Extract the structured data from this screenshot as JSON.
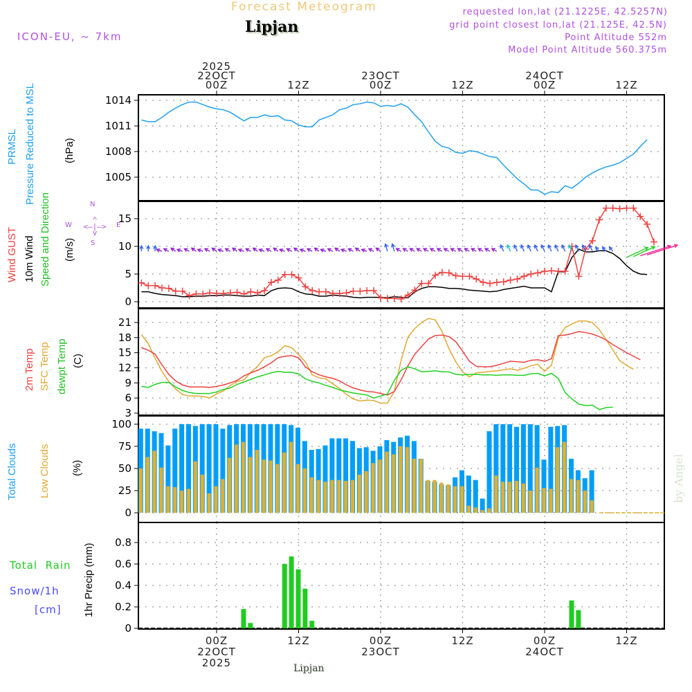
{
  "header": {
    "title": "Forecast Meteogram",
    "location": "Lipjan",
    "model": "ICON-EU, ~ 7km",
    "requested": "requested lon,lat (21.1225E, 42.5257N)",
    "gridpoint": "grid point closest lon,lat (21.125E, 42.5N)",
    "altitude": "Point Altitude 552m",
    "model_altitude": "Model Point Altitude 560.375m",
    "watermark": "by Angel",
    "footer_location": "Lipjan"
  },
  "colors": {
    "title": "#f0c878",
    "meta": "#b050e0",
    "pressure": "#1ea0f0",
    "gust": "#f04040",
    "wind": "#000000",
    "wind_dir_label": "#20c020",
    "t2m": "#f04040",
    "tsfc": "#e0a830",
    "dewpt": "#20d020",
    "total_cloud": "#009ef8",
    "low_cloud": "#e0b030",
    "rain": "#20cc20",
    "snow": "#4848ff"
  },
  "panels": {
    "pressure": {
      "labels": [
        "PRMSL",
        "Pressure Reduced to MSL"
      ],
      "unit": "(hPa)"
    },
    "wind": {
      "labels": [
        "Wind GUST",
        "10m Wind",
        "Speed and Direction"
      ],
      "unit": "(m/s)",
      "compass": {
        "n": "N",
        "s": "S",
        "e": "E",
        "w": "W"
      }
    },
    "temp": {
      "labels": [
        "2m Temp",
        "SFC Temp",
        "dewpt Temp"
      ],
      "unit": "(C)"
    },
    "clouds": {
      "labels": [
        "Total Clouds",
        "Low Clouds"
      ],
      "unit": "(%)"
    },
    "precip": {
      "labels": [
        "Total  Rain",
        "Snow/1h",
        "[cm]"
      ],
      "unit": "1hr Precip (mm)"
    }
  },
  "top_axis": [
    {
      "hour": 0,
      "lines": [
        "2025",
        "22OCT",
        "00Z"
      ]
    },
    {
      "hour": 12,
      "lines": [
        "12Z"
      ]
    },
    {
      "hour": 24,
      "lines": [
        "23OCT",
        "00Z"
      ]
    },
    {
      "hour": 36,
      "lines": [
        "12Z"
      ]
    },
    {
      "hour": 48,
      "lines": [
        "24OCT",
        "00Z"
      ]
    },
    {
      "hour": 60,
      "lines": [
        "12Z"
      ]
    }
  ],
  "bottom_axis": [
    {
      "hour": 0,
      "lines": [
        "00Z",
        "22OCT",
        "2025"
      ]
    },
    {
      "hour": 12,
      "lines": [
        "12Z"
      ]
    },
    {
      "hour": 24,
      "lines": [
        "00Z",
        "23OCT"
      ]
    },
    {
      "hour": 36,
      "lines": [
        "12Z"
      ]
    },
    {
      "hour": 48,
      "lines": [
        "00Z",
        "24OCT"
      ]
    },
    {
      "hour": 60,
      "lines": [
        "12Z"
      ]
    }
  ],
  "chart_data": [
    {
      "type": "line",
      "title": "PRMSL Pressure Reduced to MSL",
      "ylabel": "hPa",
      "ylim": [
        1002.5,
        1014.7
      ],
      "yticks": [
        1005,
        1008,
        1011,
        1014
      ],
      "x_start_hour": -11,
      "x_step_hours": 1,
      "series": [
        {
          "name": "PRMSL",
          "values": [
            1011.7,
            1011.5,
            1011.5,
            1012.0,
            1012.6,
            1013.1,
            1013.5,
            1013.8,
            1013.8,
            1013.5,
            1013.2,
            1013.0,
            1012.9,
            1012.6,
            1012.1,
            1011.6,
            1012.0,
            1012.0,
            1012.3,
            1012.1,
            1012.2,
            1011.7,
            1011.6,
            1011.1,
            1010.9,
            1010.9,
            1011.7,
            1012.0,
            1012.3,
            1012.9,
            1013.1,
            1013.5,
            1013.6,
            1013.8,
            1013.7,
            1013.3,
            1013.4,
            1013.3,
            1013.6,
            1013.2,
            1012.3,
            1011.5,
            1010.3,
            1009.2,
            1008.6,
            1008.4,
            1007.9,
            1007.8,
            1008.1,
            1008.0,
            1007.7,
            1007.4,
            1007.3,
            1006.4,
            1005.6,
            1004.8,
            1004.2,
            1003.5,
            1003.5,
            1003.0,
            1003.3,
            1003.2,
            1004.0,
            1003.7,
            1004.3,
            1005.0,
            1005.5,
            1005.9,
            1006.2,
            1006.4,
            1006.7,
            1007.2,
            1007.7,
            1008.6,
            1009.4
          ]
        }
      ]
    },
    {
      "type": "line",
      "title": "Wind GUST / 10m Wind Speed and Direction",
      "ylabel": "m/s",
      "ylim": [
        -1,
        18
      ],
      "yticks": [
        0,
        5,
        10,
        15
      ],
      "x_start_hour": -11,
      "x_step_hours": 1,
      "series": [
        {
          "name": "Wind GUST",
          "values": [
            3.4,
            2.9,
            2.9,
            2.5,
            2.4,
            1.9,
            1.9,
            1.1,
            1.4,
            1.4,
            1.6,
            1.5,
            1.5,
            1.6,
            1.7,
            1.4,
            1.8,
            1.6,
            2.0,
            3.5,
            3.9,
            4.9,
            4.9,
            4.3,
            2.7,
            2.0,
            1.8,
            1.8,
            1.5,
            1.5,
            1.6,
            1.9,
            1.9,
            2.0,
            2.0,
            0.7,
            0.6,
            0.6,
            0.5,
            1.2,
            2.1,
            3.3,
            3.3,
            4.8,
            5.3,
            5.2,
            4.7,
            4.6,
            4.6,
            4.1,
            3.5,
            3.3,
            3.5,
            3.6,
            3.9,
            4.1,
            4.6,
            5.0,
            5.2,
            5.5,
            5.6,
            5.5,
            5.5,
            10.0,
            4.6,
            9.5,
            11.0,
            14.8,
            16.9,
            16.9,
            16.8,
            16.9,
            16.9,
            15.4,
            14.0,
            10.8
          ]
        },
        {
          "name": "10m Wind",
          "values": [
            1.8,
            1.8,
            1.5,
            1.3,
            1.2,
            1.1,
            0.9,
            0.9,
            1.0,
            1.0,
            1.1,
            1.1,
            1.2,
            1.2,
            1.1,
            1.0,
            1.0,
            1.2,
            1.1,
            2.0,
            2.4,
            2.5,
            2.4,
            1.8,
            1.4,
            1.3,
            1.0,
            1.0,
            1.2,
            1.1,
            1.0,
            0.8,
            0.7,
            0.8,
            0.8,
            0.8,
            0.7,
            0.9,
            0.8,
            0.7,
            1.8,
            2.4,
            2.7,
            2.7,
            2.6,
            2.4,
            2.4,
            2.3,
            2.1,
            2.0,
            1.9,
            1.8,
            1.9,
            2.2,
            2.4,
            2.6,
            2.8,
            2.5,
            2.5,
            2.5,
            1.8,
            5.4,
            5.4,
            8.0,
            9.5,
            9.0,
            9.0,
            9.2,
            9.2,
            8.7,
            7.8,
            6.5,
            5.5,
            5.0,
            4.9
          ]
        }
      ],
      "wind_direction_arrows": "plotted at ~9 m/s row; blue/purple N-NW arrows Oct 21-24, shifting to SW (green/magenta/orange) after 24OCT ~06Z"
    },
    {
      "type": "line",
      "title": "2m Temp / SFC Temp / dewpt Temp",
      "ylabel": "C",
      "ylim": [
        3,
        22.5
      ],
      "yticks": [
        3,
        6,
        9,
        12,
        15,
        18,
        21
      ],
      "x_start_hour": -11,
      "x_step_hours": 1,
      "series": [
        {
          "name": "2m Temp",
          "values": [
            16.0,
            15.5,
            14.7,
            12.6,
            10.7,
            9.4,
            8.6,
            8.2,
            8.2,
            8.2,
            8.1,
            8.3,
            8.6,
            9.0,
            9.5,
            10.4,
            11.0,
            11.5,
            12.2,
            13.0,
            14.0,
            14.3,
            14.4,
            14.0,
            12.2,
            11.2,
            10.6,
            10.2,
            9.9,
            9.4,
            8.6,
            8.0,
            7.6,
            7.3,
            7.2,
            6.9,
            6.6,
            7.3,
            9.6,
            12.4,
            14.7,
            16.2,
            17.7,
            18.4,
            18.5,
            18.2,
            17.2,
            15.3,
            13.3,
            12.3,
            12.2,
            12.2,
            12.5,
            12.9,
            13.3,
            13.2,
            13.1,
            13.5,
            13.6,
            13.3,
            13.8,
            18.4,
            18.5,
            18.8,
            19.2,
            19.0,
            18.7,
            18.2,
            17.5,
            16.6,
            15.8,
            15.0,
            14.3,
            13.6
          ]
        },
        {
          "name": "SFC Temp",
          "values": [
            18.6,
            16.8,
            13.9,
            11.3,
            9.3,
            7.8,
            6.7,
            6.4,
            6.4,
            6.3,
            6.0,
            6.8,
            7.4,
            8.5,
            9.3,
            9.6,
            11.1,
            12.3,
            14.0,
            14.4,
            15.2,
            16.4,
            16.0,
            14.6,
            13.2,
            10.6,
            10.0,
            9.8,
            8.8,
            7.9,
            6.7,
            5.8,
            5.4,
            5.6,
            5.5,
            5.0,
            5.0,
            7.3,
            13.5,
            18.1,
            19.8,
            21.0,
            21.8,
            21.5,
            19.2,
            15.8,
            13.2,
            11.2,
            10.2,
            11.0,
            11.1,
            11.3,
            11.4,
            11.6,
            11.8,
            11.5,
            11.9,
            12.4,
            12.7,
            11.3,
            12.5,
            17.9,
            20.0,
            20.7,
            21.3,
            21.3,
            21.0,
            19.6,
            17.6,
            15.5,
            13.4,
            12.5,
            11.7
          ]
        },
        {
          "name": "dewpt Temp",
          "values": [
            8.3,
            8.1,
            8.7,
            9.1,
            9.1,
            8.2,
            7.5,
            7.1,
            6.9,
            6.9,
            6.9,
            7.2,
            7.7,
            8.0,
            8.7,
            9.2,
            9.7,
            10.2,
            10.6,
            11.0,
            11.3,
            11.1,
            11.1,
            10.8,
            9.8,
            9.3,
            9.0,
            8.5,
            8.1,
            7.6,
            7.3,
            7.0,
            6.8,
            6.6,
            6.0,
            6.4,
            6.8,
            9.5,
            11.5,
            12.2,
            11.8,
            11.2,
            11.3,
            11.4,
            11.2,
            11.2,
            10.7,
            10.6,
            10.7,
            10.7,
            10.6,
            10.6,
            10.5,
            10.6,
            10.6,
            10.5,
            10.5,
            10.8,
            10.9,
            10.4,
            10.9,
            9.9,
            7.1,
            5.8,
            4.8,
            4.5,
            4.6,
            3.7,
            4.1,
            4.2
          ]
        }
      ]
    },
    {
      "type": "bar",
      "title": "Total Clouds / Low Clouds",
      "ylabel": "%",
      "ylim": [
        0,
        100
      ],
      "yticks": [
        0,
        25,
        50,
        75,
        100
      ],
      "x_start_hour": -11,
      "x_step_hours": 1,
      "series": [
        {
          "name": "Total Clouds",
          "values": [
            95,
            95,
            92,
            90,
            76,
            95,
            100,
            100,
            98,
            100,
            100,
            100,
            95,
            99,
            100,
            100,
            100,
            100,
            100,
            100,
            100,
            100,
            99,
            96,
            81,
            71,
            72,
            76,
            84,
            84,
            84,
            81,
            73,
            74,
            70,
            75,
            82,
            80,
            85,
            87,
            81,
            61,
            36,
            35,
            32,
            31,
            40,
            48,
            42,
            37,
            16,
            92,
            100,
            100,
            100,
            97,
            100,
            100,
            99,
            60,
            97,
            98,
            99,
            61,
            48,
            39,
            48
          ]
        },
        {
          "name": "Low Clouds",
          "values": [
            50,
            63,
            70,
            51,
            30,
            29,
            25,
            27,
            58,
            43,
            22,
            30,
            38,
            62,
            77,
            80,
            63,
            71,
            60,
            59,
            55,
            68,
            80,
            55,
            50,
            40,
            37,
            35,
            37,
            37,
            36,
            37,
            43,
            47,
            56,
            60,
            69,
            66,
            75,
            74,
            61,
            61,
            37,
            37,
            34,
            32,
            30,
            30,
            8,
            6,
            3,
            5,
            42,
            35,
            35,
            36,
            33,
            25,
            51,
            28,
            27,
            74,
            80,
            38,
            37,
            25,
            14
          ]
        }
      ]
    },
    {
      "type": "bar",
      "title": "Total Rain / Snow 1hr Precip",
      "ylabel": "1hr Precip (mm)",
      "ylim": [
        0,
        0.96
      ],
      "yticks": [
        0,
        0.2,
        0.4,
        0.6,
        0.8
      ],
      "x_start_hour": -11,
      "x_step_hours": 1,
      "series": [
        {
          "name": "Total Rain",
          "values": [
            0,
            0,
            0,
            0,
            0,
            0,
            0,
            0,
            0,
            0,
            0,
            0,
            0,
            0,
            0,
            0.18,
            0.05,
            0,
            0,
            0,
            0,
            0.6,
            0.67,
            0.55,
            0.37,
            0.07,
            0,
            0,
            0,
            0,
            0,
            0,
            0,
            0,
            0,
            0,
            0,
            0,
            0,
            0,
            0,
            0,
            0,
            0,
            0,
            0,
            0,
            0,
            0,
            0,
            0,
            0,
            0,
            0,
            0,
            0,
            0,
            0,
            0,
            0,
            0,
            0,
            0,
            0.26,
            0.17,
            0,
            0,
            0,
            0,
            0,
            0,
            0,
            0,
            0,
            0,
            0
          ]
        },
        {
          "name": "Snow/1h",
          "values": []
        }
      ]
    }
  ]
}
